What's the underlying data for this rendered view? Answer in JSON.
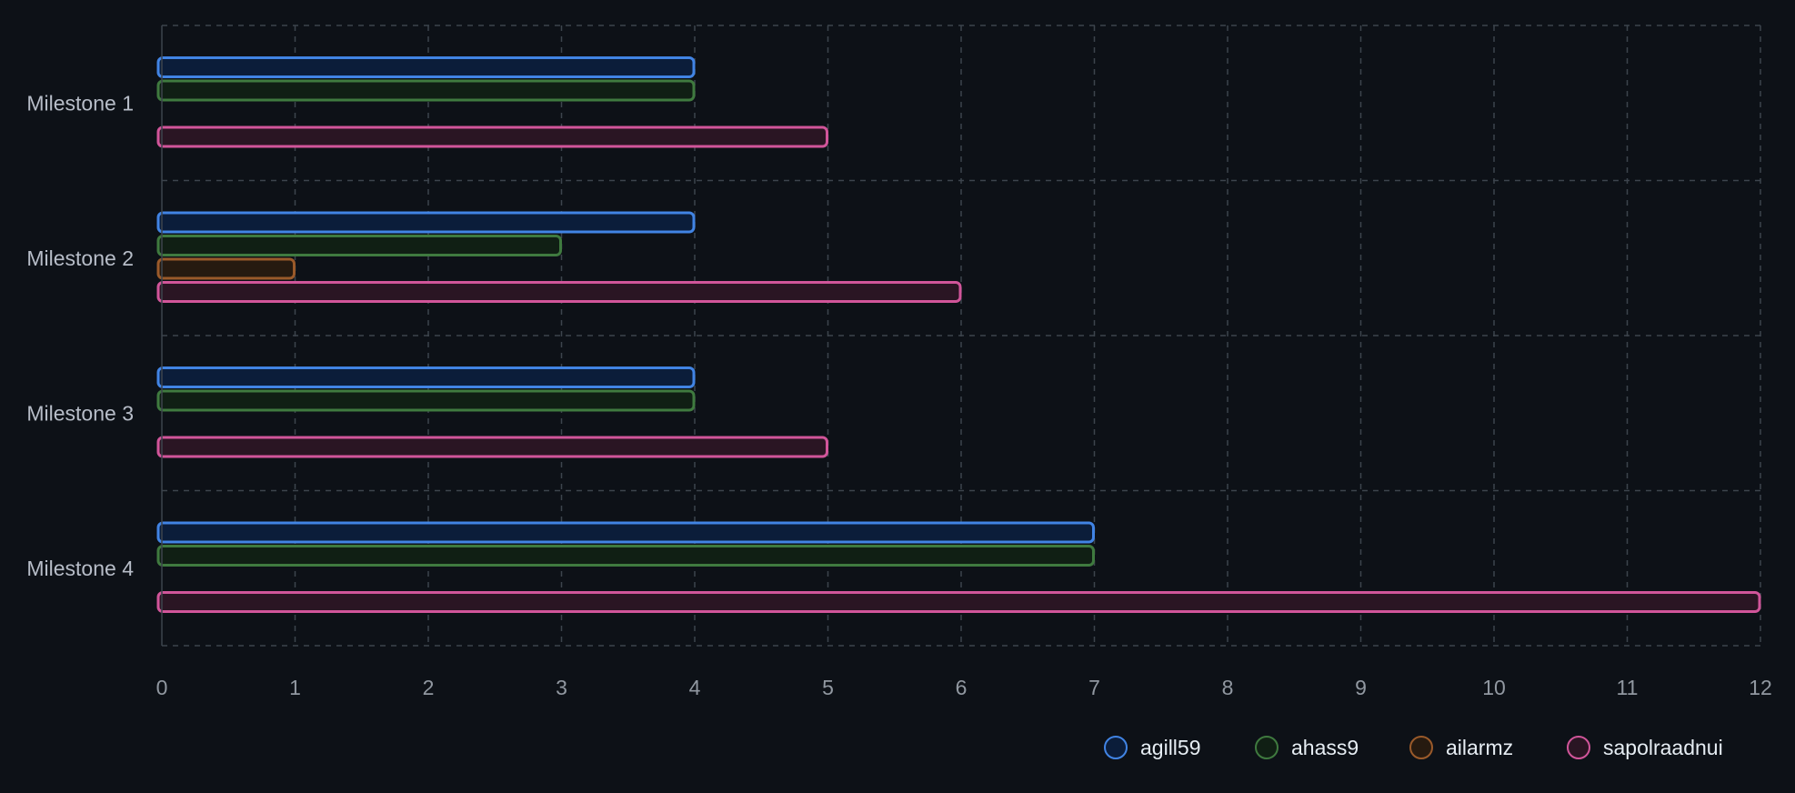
{
  "chart_data": {
    "type": "bar",
    "orientation": "horizontal",
    "categories": [
      "Milestone 1",
      "Milestone 2",
      "Milestone 3",
      "Milestone 4"
    ],
    "series": [
      {
        "name": "agill59",
        "color": "#4184e4",
        "fill": "#0b1d3a",
        "values": [
          4,
          4,
          4,
          7
        ]
      },
      {
        "name": "ahass9",
        "color": "#3f7a3f",
        "fill": "#101f14",
        "values": [
          4,
          3,
          4,
          7
        ]
      },
      {
        "name": "ailarmz",
        "color": "#9a5a2a",
        "fill": "#261a10",
        "values": [
          0,
          1,
          0,
          0
        ]
      },
      {
        "name": "sapolraadnui",
        "color": "#d1559a",
        "fill": "#2a1523",
        "values": [
          5,
          6,
          5,
          12
        ]
      }
    ],
    "xlim": [
      0,
      12
    ],
    "xticks": [
      "0",
      "1",
      "2",
      "3",
      "4",
      "5",
      "6",
      "7",
      "8",
      "9",
      "10",
      "11",
      "12"
    ],
    "grid": true,
    "legend_position": "bottom-right",
    "background": "#0d1117"
  }
}
